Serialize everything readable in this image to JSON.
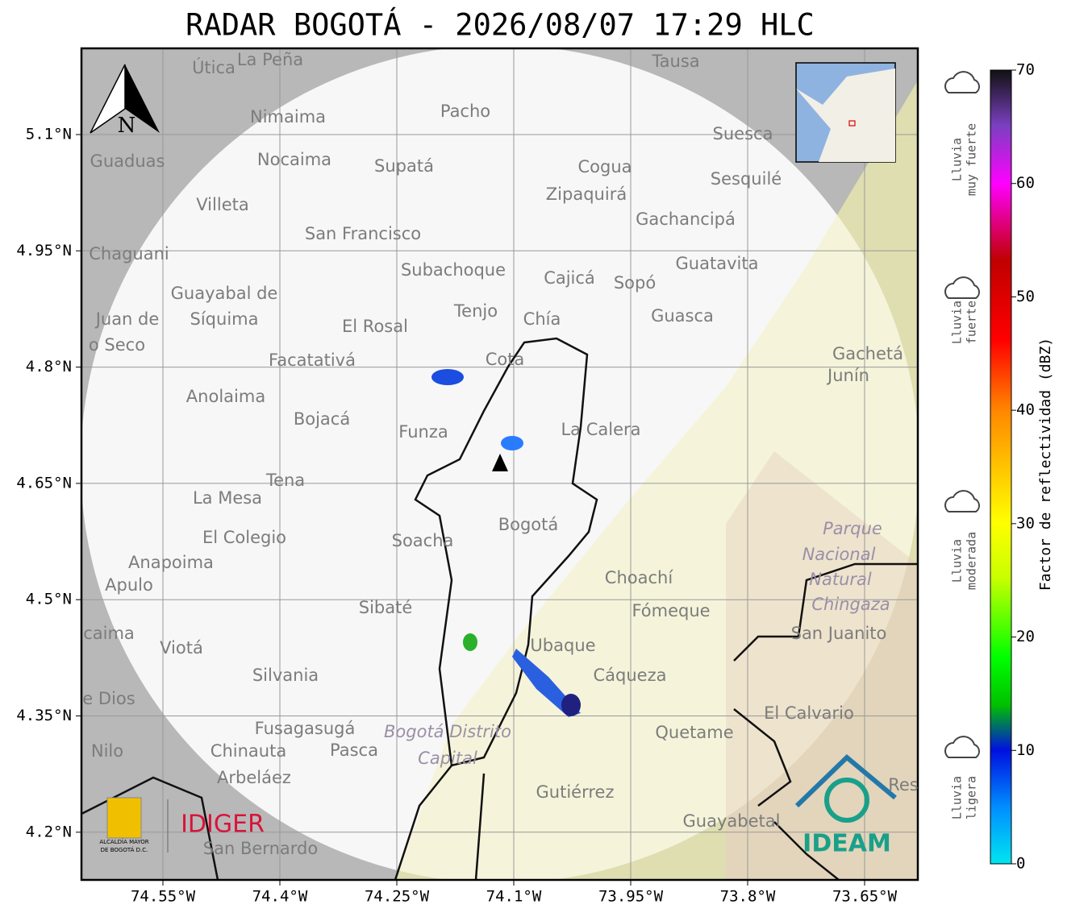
{
  "title": "RADAR BOGOTÁ - 2026/08/07 17:29 HLC",
  "x_ticks": [
    "74.55°W",
    "74.4°W",
    "74.25°W",
    "74.1°W",
    "73.95°W",
    "73.8°W",
    "73.65°W"
  ],
  "y_ticks": [
    "5.1°N",
    "4.95°N",
    "4.8°N",
    "4.65°N",
    "4.5°N",
    "4.35°N",
    "4.2°N"
  ],
  "north_arrow": "N",
  "colorbar": {
    "label": "Factor de reflectividad (dBZ)",
    "ticks": [
      0,
      10,
      20,
      30,
      40,
      50,
      60,
      70
    ]
  },
  "rain_levels": [
    [
      "Lluvia",
      "muy fuerte"
    ],
    [
      "Lluvia",
      "fuerte"
    ],
    [
      "Lluvia",
      "moderada"
    ],
    [
      "Lluvia",
      "ligera"
    ]
  ],
  "places": [
    "Útica",
    "La Peña",
    "Tausa",
    "Pacho",
    "Nimaima",
    "Guaduas",
    "Nocaima",
    "Supatá",
    "Cogua",
    "Suesca",
    "Sesquilé",
    "Zipaquirá",
    "Villeta",
    "Gachancipá",
    "San Francisco",
    "Chaguani",
    "Guatavita",
    "Subachoque",
    "Cajicá",
    "Sopó",
    "Guayabal de",
    "Síquima",
    "Juan de",
    "o Seco",
    "Tenjo",
    "Chía",
    "Guasca",
    "El Rosal",
    "Facatativá",
    "Cota",
    "Gachetá",
    "Junín",
    "Anolaima",
    "Bojacá",
    "Funza",
    "La Calera",
    "Tena",
    "La Mesa",
    "Bogotá",
    "Soacha",
    "El Colegio",
    "Anapoima",
    "Apulo",
    "Choachí",
    "Sibaté",
    "Fómeque",
    "San Juanito",
    "caima",
    "Viotá",
    "Ubaque",
    "Cáqueza",
    "Silvania",
    "e Dios",
    "El Calvario",
    "Quetame",
    "Fusagasugá",
    "Nilo",
    "Chinauta",
    "Pasca",
    "Arbeláez",
    "Res",
    "Gutiérrez",
    "Guayabetal",
    "San Bernardo"
  ],
  "park_labels": [
    "Parque",
    "Nacional",
    "Natural",
    "Chingaza",
    "Bogotá Distrito",
    "Capital"
  ],
  "logos": {
    "alcaldia": [
      "ALCALDÍA MAYOR",
      "DE BOGOTÁ D.C."
    ],
    "idiger": "IDIGER",
    "ideam": "IDEAM"
  }
}
